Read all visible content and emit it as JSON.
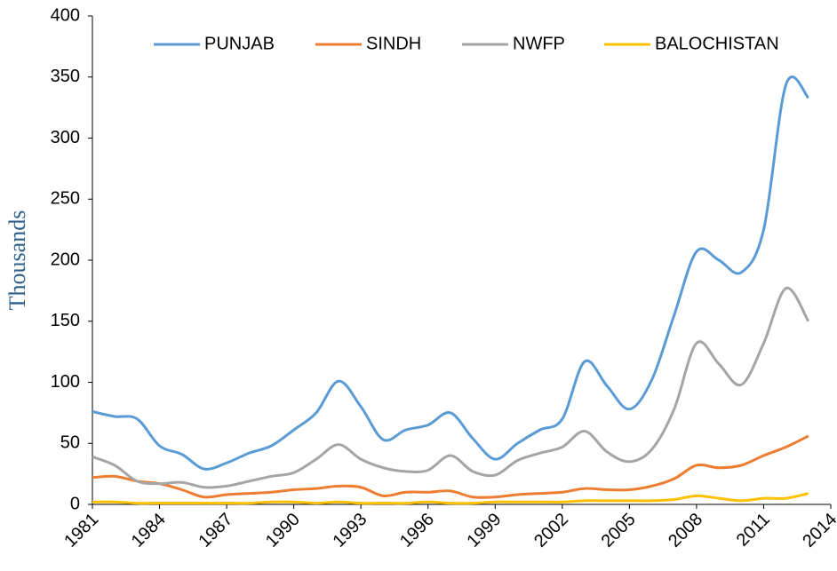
{
  "chart_data": {
    "type": "line",
    "y_label": "Thousands",
    "x": [
      1981,
      1982,
      1983,
      1984,
      1985,
      1986,
      1987,
      1988,
      1989,
      1990,
      1991,
      1992,
      1993,
      1994,
      1995,
      1996,
      1997,
      1998,
      1999,
      2000,
      2001,
      2002,
      2003,
      2004,
      2005,
      2006,
      2007,
      2008,
      2009,
      2010,
      2011,
      2012,
      2013
    ],
    "series": [
      {
        "name": "PUNJAB",
        "color": "#5b9bd5",
        "values": [
          76,
          72,
          70,
          48,
          41,
          29,
          34,
          42,
          48,
          61,
          75,
          101,
          80,
          53,
          61,
          65,
          75,
          54,
          37,
          50,
          61,
          70,
          117,
          97,
          78,
          102,
          155,
          207,
          200,
          190,
          225,
          344,
          333
        ]
      },
      {
        "name": "SINDH",
        "color": "#ed7d31",
        "values": [
          22,
          23,
          19,
          17,
          12,
          6,
          8,
          9,
          10,
          12,
          13,
          15,
          14,
          7,
          10,
          10,
          11,
          6,
          6,
          8,
          9,
          10,
          13,
          12,
          12,
          15,
          21,
          32,
          30,
          32,
          40,
          47,
          56
        ]
      },
      {
        "name": "NWFP",
        "color": "#a5a5a5",
        "values": [
          39,
          32,
          19,
          17,
          18,
          14,
          15,
          19,
          23,
          26,
          37,
          49,
          37,
          30,
          27,
          28,
          40,
          27,
          24,
          36,
          42,
          47,
          60,
          43,
          35,
          45,
          78,
          132,
          115,
          98,
          132,
          177,
          150
        ]
      },
      {
        "name": "BALOCHISTAN",
        "color": "#ffc000",
        "values": [
          2,
          2,
          1,
          1,
          1,
          1,
          1,
          1,
          2,
          2,
          1,
          2,
          1,
          1,
          1,
          2,
          1,
          1,
          2,
          2,
          2,
          2,
          3,
          3,
          3,
          3,
          4,
          7,
          5,
          3,
          5,
          5,
          9
        ]
      }
    ],
    "xlim": [
      1981,
      2014
    ],
    "xticks": [
      1981,
      1984,
      1987,
      1990,
      1993,
      1996,
      1999,
      2002,
      2005,
      2008,
      2011,
      2014
    ],
    "ylim": [
      0,
      400
    ],
    "yticks": [
      0,
      50,
      100,
      150,
      200,
      250,
      300,
      350,
      400
    ],
    "grid": false,
    "legend": "top"
  }
}
